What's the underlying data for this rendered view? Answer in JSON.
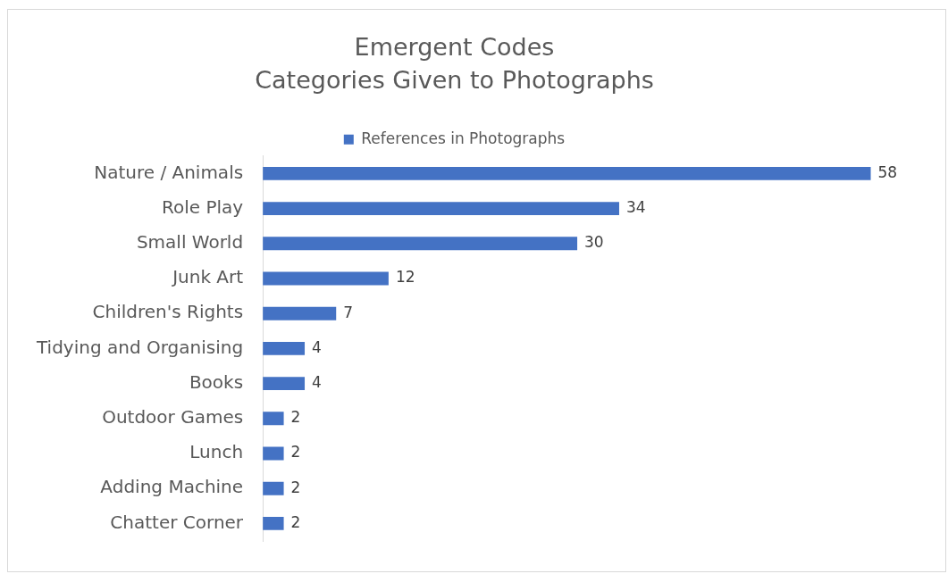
{
  "chart_data": {
    "type": "bar",
    "orientation": "horizontal",
    "title": "Emergent Codes",
    "subtitle": "Categories Given to Photographs",
    "categories": [
      "Nature / Animals",
      "Role Play",
      "Small World",
      "Junk Art",
      "Children's Rights",
      "Tidying and Organising",
      "Books",
      "Outdoor Games",
      "Lunch",
      "Adding Machine",
      "Chatter Corner"
    ],
    "series": [
      {
        "name": "References in Photographs",
        "color": "#4472c4",
        "values": [
          58,
          34,
          30,
          12,
          7,
          4,
          4,
          2,
          2,
          2,
          2
        ]
      }
    ],
    "data_labels": true,
    "legend": "top",
    "tick_labels": "y"
  }
}
